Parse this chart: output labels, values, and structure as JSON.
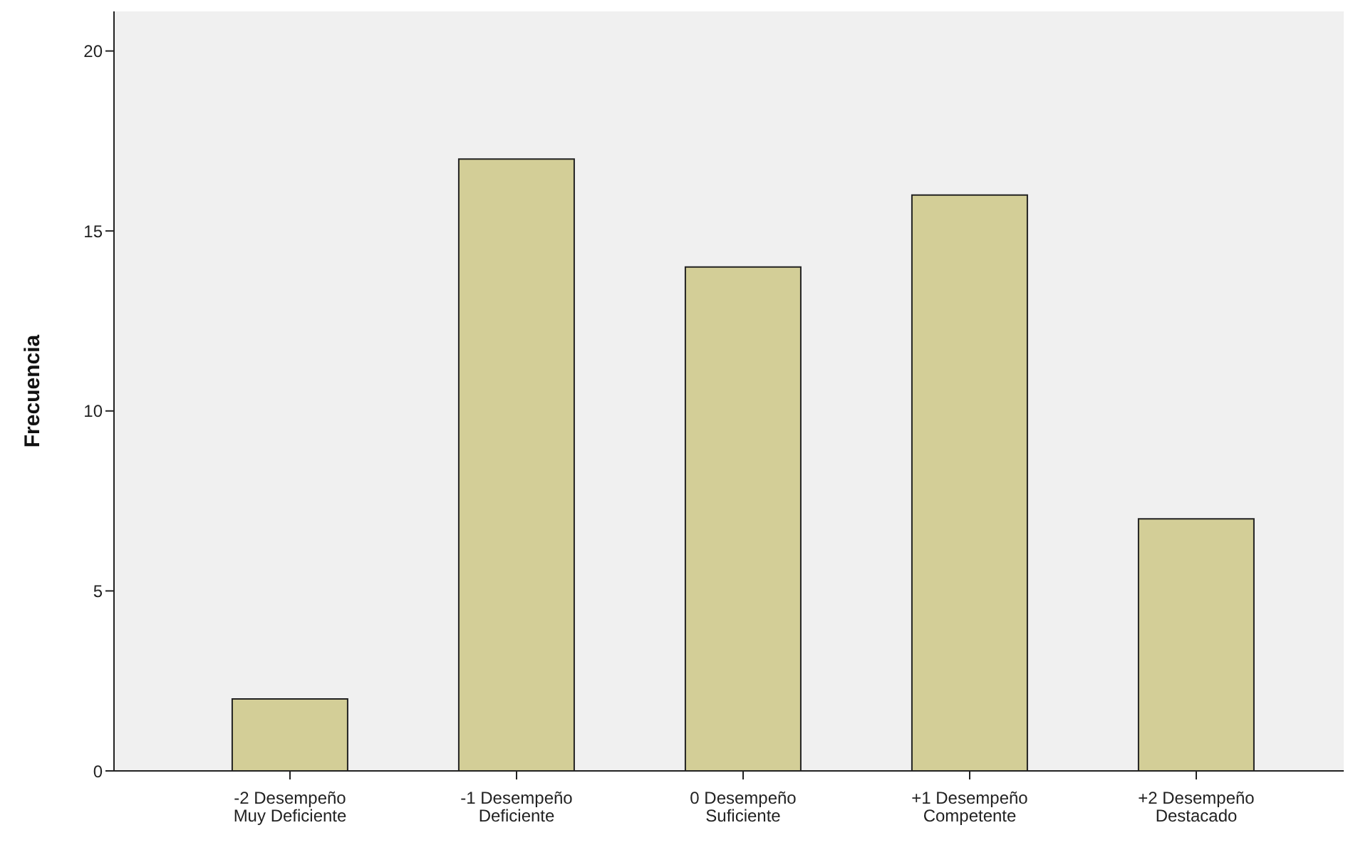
{
  "chart_data": {
    "type": "bar",
    "ylabel": "Frecuencia",
    "categories": [
      "-2 Desempeño\nMuy Deficiente",
      "-1 Desempeño\nDeficiente",
      "0 Desempeño\nSuficiente",
      "+1 Desempeño\nCompetente",
      "+2 Desempeño\nDestacado"
    ],
    "values": [
      2,
      17,
      14,
      16,
      7
    ],
    "color": "#d3ce97",
    "ylim": [
      0,
      21.1
    ],
    "yticks": [
      0,
      5,
      10,
      15,
      20
    ],
    "grid": false
  }
}
